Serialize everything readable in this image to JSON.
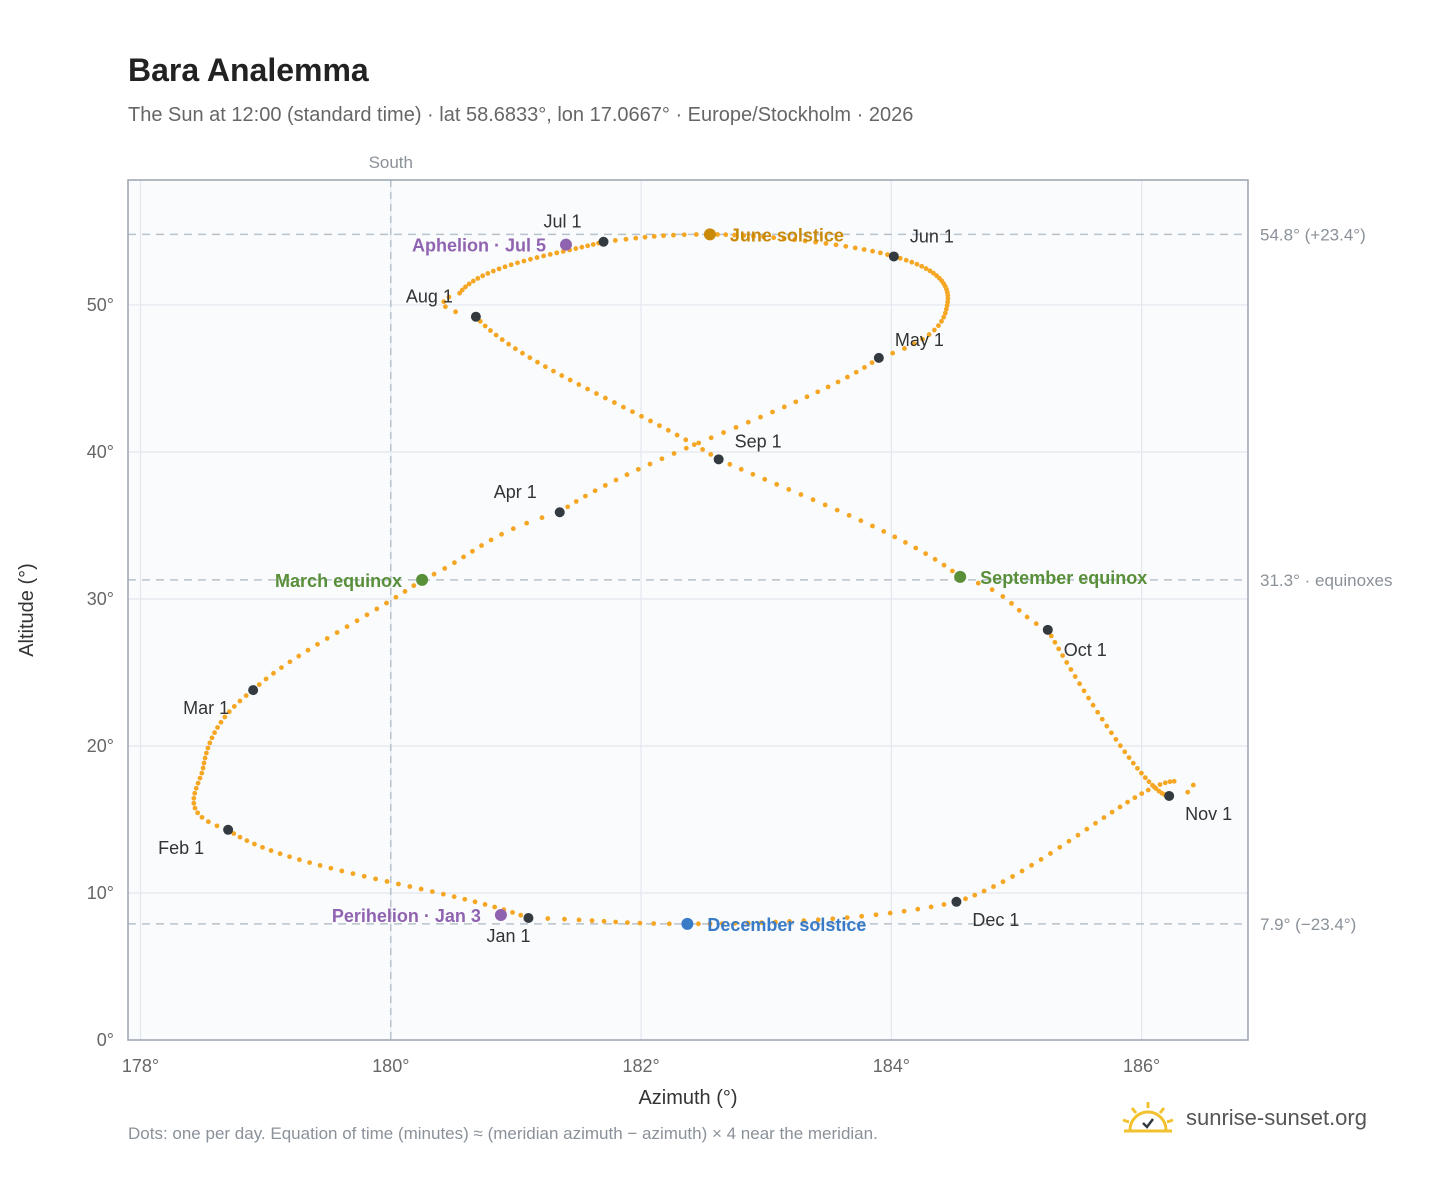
{
  "title": "Bara Analemma",
  "subtitle": "The Sun at 12:00 (standard time) · lat 58.6833°, lon 17.0667° · Europe/Stockholm · 2026",
  "footnote": "Dots: one per day. Equation of time (minutes) ≈ (meridian azimuth − azimuth) × 4 near the meridian.",
  "brand": {
    "name": "sunrise-sunset.org",
    "logo_icon": "sun-logo-icon"
  },
  "colors": {
    "path": "#f5a623",
    "month": "#333a40",
    "june": "#c98a0a",
    "december": "#3a7bc8",
    "equinox": "#5a8f3a",
    "apsis": "#9063b0",
    "plot_bg": "#f9fbfd",
    "grid": "#e3e8ee",
    "ref": "#b8c2cc"
  },
  "chart_data": {
    "type": "scatter",
    "title": "Bara Analemma",
    "xlabel": "Azimuth (°)",
    "ylabel": "Altitude (°)",
    "xlim": [
      177.9,
      186.85
    ],
    "ylim": [
      0,
      58.5
    ],
    "xticks": [
      178,
      180,
      182,
      184,
      186
    ],
    "yticks": [
      0,
      10,
      20,
      30,
      40,
      50
    ],
    "xtick_labels": [
      "178°",
      "180°",
      "182°",
      "184°",
      "186°"
    ],
    "ytick_labels": [
      "0°",
      "10°",
      "20°",
      "30°",
      "40°",
      "50°"
    ],
    "grid": true,
    "meridian": {
      "x": 180,
      "label": "South"
    },
    "ref_lines": [
      {
        "y": 54.8,
        "label": "54.8° (+23.4°)"
      },
      {
        "y": 31.3,
        "label": "31.3° · equinoxes"
      },
      {
        "y": 7.9,
        "label": "7.9° (−23.4°)"
      }
    ],
    "path_anchors": [
      {
        "day": 1,
        "x": 181.1,
        "y": 8.3
      },
      {
        "day": 32,
        "x": 178.7,
        "y": 14.3
      },
      {
        "day": 60,
        "x": 178.9,
        "y": 23.8
      },
      {
        "day": 79,
        "x": 180.25,
        "y": 31.3
      },
      {
        "day": 91,
        "x": 181.35,
        "y": 35.9
      },
      {
        "day": 121,
        "x": 183.9,
        "y": 46.4
      },
      {
        "day": 152,
        "x": 184.02,
        "y": 53.3
      },
      {
        "day": 172,
        "x": 182.55,
        "y": 54.8
      },
      {
        "day": 182,
        "x": 181.7,
        "y": 54.3
      },
      {
        "day": 213,
        "x": 180.68,
        "y": 49.2
      },
      {
        "day": 244,
        "x": 182.62,
        "y": 39.5
      },
      {
        "day": 266,
        "x": 184.55,
        "y": 31.5
      },
      {
        "day": 274,
        "x": 185.25,
        "y": 27.9
      },
      {
        "day": 305,
        "x": 186.22,
        "y": 16.6
      },
      {
        "day": 335,
        "x": 184.52,
        "y": 9.4
      },
      {
        "day": 355,
        "x": 182.37,
        "y": 7.9
      },
      {
        "day": 366,
        "x": 181.1,
        "y": 8.3
      }
    ],
    "extrema": [
      {
        "day": 45,
        "x": 178.5,
        "y": 18.5
      },
      {
        "day": 134,
        "x": 184.45,
        "y": 50.2
      },
      {
        "day": 208,
        "x": 180.55,
        "y": 50.8
      },
      {
        "day": 308,
        "x": 186.26,
        "y": 17.6
      }
    ],
    "months": [
      {
        "label": "Jan 1",
        "x": 181.1,
        "y": 8.3
      },
      {
        "label": "Feb 1",
        "x": 178.7,
        "y": 14.3
      },
      {
        "label": "Mar 1",
        "x": 178.9,
        "y": 23.8
      },
      {
        "label": "Apr 1",
        "x": 181.35,
        "y": 35.9
      },
      {
        "label": "May 1",
        "x": 183.9,
        "y": 46.4
      },
      {
        "label": "Jun 1",
        "x": 184.02,
        "y": 53.3
      },
      {
        "label": "Jul 1",
        "x": 181.7,
        "y": 54.3
      },
      {
        "label": "Aug 1",
        "x": 180.68,
        "y": 49.2
      },
      {
        "label": "Sep 1",
        "x": 182.62,
        "y": 39.5
      },
      {
        "label": "Oct 1",
        "x": 185.25,
        "y": 27.9
      },
      {
        "label": "Nov 1",
        "x": 186.22,
        "y": 16.6
      },
      {
        "label": "Dec 1",
        "x": 184.52,
        "y": 9.4
      }
    ],
    "events": [
      {
        "label": "June solstice",
        "x": 182.55,
        "y": 54.8,
        "kind": "june"
      },
      {
        "label": "December solstice",
        "x": 182.37,
        "y": 7.9,
        "kind": "december"
      },
      {
        "label": "March equinox",
        "x": 180.25,
        "y": 31.3,
        "kind": "equinox"
      },
      {
        "label": "September equinox",
        "x": 184.55,
        "y": 31.5,
        "kind": "equinox"
      },
      {
        "label": "Aphelion · Jul 5",
        "x": 181.4,
        "y": 54.1,
        "kind": "apsis"
      },
      {
        "label": "Perihelion · Jan 3",
        "x": 180.88,
        "y": 8.5,
        "kind": "apsis"
      }
    ]
  }
}
